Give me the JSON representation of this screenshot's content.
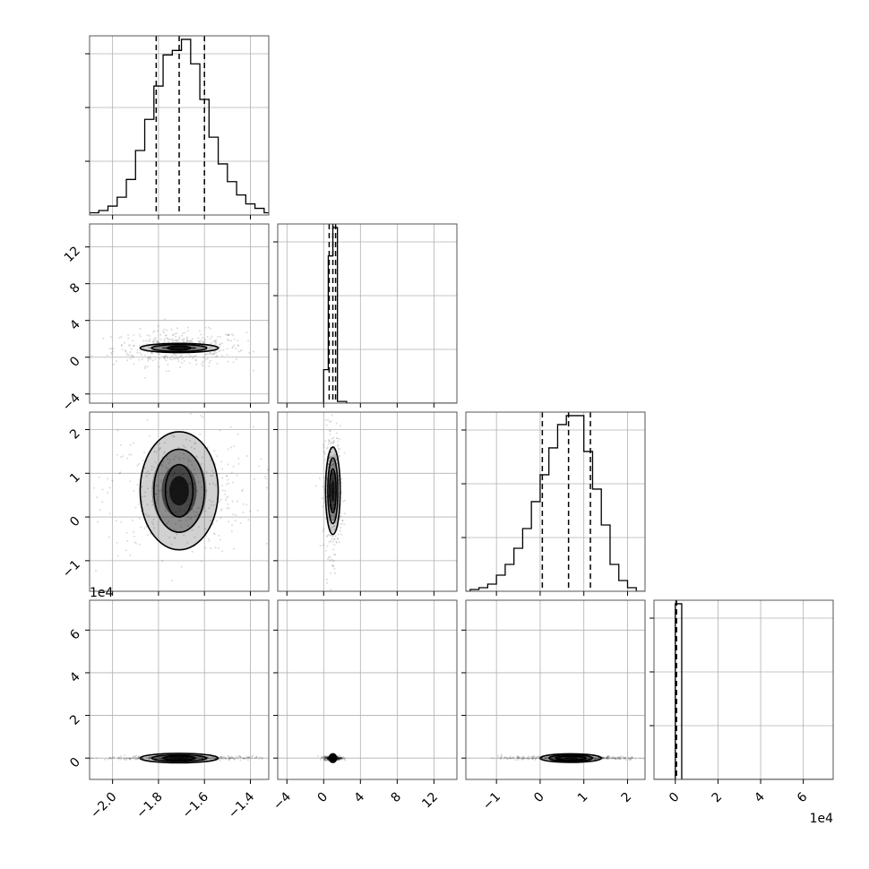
{
  "chart_data": {
    "type": "corner",
    "title": "",
    "grid": true,
    "parameters": [
      {
        "index": 0,
        "axis_multiplier": "",
        "lim": [
          -2.1,
          -1.32
        ],
        "ticks": [
          -2.0,
          -1.8,
          -1.6,
          -1.4
        ],
        "tick_labels": [
          "−2.0",
          "−1.8",
          "−1.6",
          "−1.4"
        ],
        "quantiles": [
          -1.81,
          -1.71,
          -1.6
        ]
      },
      {
        "index": 1,
        "axis_multiplier": "",
        "lim": [
          -5,
          14.5
        ],
        "ticks": [
          -4,
          0,
          4,
          8,
          12
        ],
        "tick_labels": [
          "−4",
          "0",
          "4",
          "8",
          "12"
        ],
        "quantiles": [
          0.6,
          1.0,
          1.3
        ]
      },
      {
        "index": 2,
        "axis_multiplier": "1e4",
        "lim": [
          -1.7,
          2.4
        ],
        "ticks": [
          -1,
          0,
          1,
          2
        ],
        "tick_labels": [
          "−1",
          "0",
          "1",
          "2"
        ],
        "quantiles": [
          0.05,
          0.65,
          1.15
        ]
      },
      {
        "index": 3,
        "axis_multiplier": "1e4",
        "lim": [
          -1,
          7.4
        ],
        "ticks": [
          0,
          2,
          4,
          6
        ],
        "tick_labels": [
          "0",
          "2",
          "4",
          "6"
        ],
        "quantiles": [
          0.05,
          0.05,
          0.05
        ]
      }
    ],
    "histograms": [
      {
        "param": 0,
        "edges": [
          -2.1,
          -2.06,
          -2.02,
          -1.98,
          -1.94,
          -1.9,
          -1.86,
          -1.82,
          -1.78,
          -1.74,
          -1.7,
          -1.66,
          -1.62,
          -1.58,
          -1.54,
          -1.5,
          -1.46,
          -1.42,
          -1.38,
          -1.34,
          -1.3
        ],
        "counts": [
          1,
          2,
          4,
          8,
          16,
          29,
          43,
          58,
          72,
          74,
          79,
          68,
          52,
          35,
          23,
          15,
          9,
          5,
          3,
          1
        ]
      },
      {
        "param": 1,
        "edges": [
          -1,
          0,
          0.5,
          1,
          1.5,
          2.5
        ],
        "counts": [
          0,
          20,
          88,
          105,
          1
        ]
      },
      {
        "param": 2,
        "edges": [
          -1.6,
          -1.4,
          -1.2,
          -1,
          -0.8,
          -0.6,
          -0.4,
          -0.2,
          0,
          0.2,
          0.4,
          0.6,
          0.8,
          1,
          1.2,
          1.4,
          1.6,
          1.8,
          2,
          2.2
        ],
        "counts": [
          1,
          2,
          4,
          9,
          15,
          24,
          35,
          50,
          65,
          80,
          93,
          98,
          98,
          78,
          57,
          37,
          15,
          6,
          2
        ]
      },
      {
        "param": 3,
        "edges": [
          0,
          0.3
        ],
        "counts": [
          100
        ]
      }
    ],
    "pairs": [
      {
        "x": 0,
        "y": 1,
        "center": [
          -1.71,
          1.0
        ],
        "spread": [
          0.09,
          0.6
        ],
        "contours": [
          [
            0.17,
            0.5
          ],
          [
            0.12,
            0.37
          ],
          [
            0.05,
            0.2
          ]
        ]
      },
      {
        "x": 0,
        "y": 2,
        "center": [
          -1.71,
          0.6
        ],
        "spread": [
          0.1,
          0.45
        ],
        "contours": [
          [
            0.17,
            1.35
          ],
          [
            0.11,
            0.95
          ],
          [
            0.06,
            0.6
          ]
        ]
      },
      {
        "x": 0,
        "y": 3,
        "center": [
          -1.71,
          0.0
        ],
        "spread": [
          0.1,
          0.03
        ],
        "contours": [
          [
            0.17,
            0.22
          ],
          [
            0.12,
            0.15
          ],
          [
            0.07,
            0.09
          ]
        ]
      },
      {
        "x": 1,
        "y": 2,
        "center": [
          1.0,
          0.6
        ],
        "spread": [
          0.3,
          0.45
        ],
        "contours": [
          [
            0.8,
            1.0
          ],
          [
            0.55,
            0.75
          ],
          [
            0.35,
            0.5
          ]
        ]
      },
      {
        "x": 1,
        "y": 3,
        "center": [
          1.0,
          0.0
        ],
        "spread": [
          0.3,
          0.03
        ],
        "contours": [
          [
            0.4,
            0.2
          ],
          [
            0.3,
            0.15
          ],
          [
            0.2,
            0.1
          ]
        ]
      },
      {
        "x": 2,
        "y": 3,
        "center": [
          0.7,
          0.0
        ],
        "spread": [
          0.5,
          0.03
        ],
        "contours": [
          [
            0.7,
            0.2
          ],
          [
            0.5,
            0.15
          ],
          [
            0.35,
            0.09
          ]
        ]
      }
    ]
  }
}
